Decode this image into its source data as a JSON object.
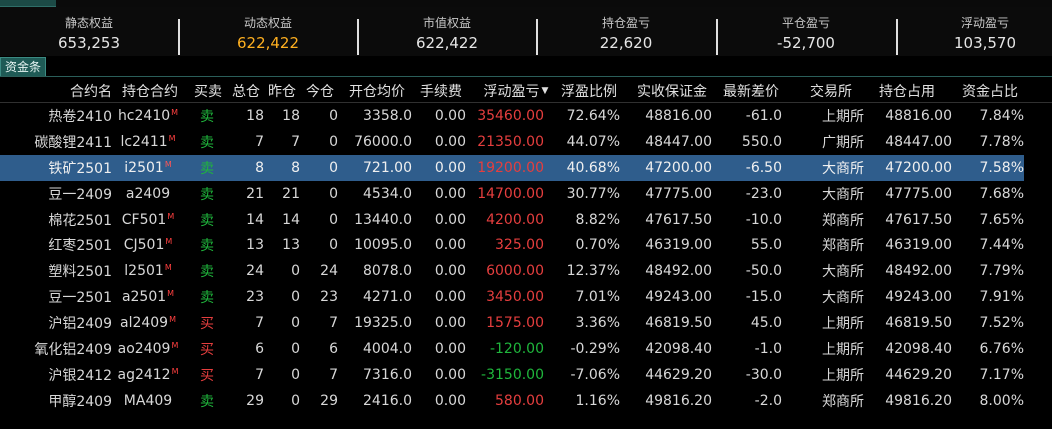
{
  "summary": [
    {
      "label": "静态权益",
      "value": "653,253",
      "accent": false
    },
    {
      "label": "动态权益",
      "value": "622,422",
      "accent": true
    },
    {
      "label": "市值权益",
      "value": "622,422",
      "accent": false
    },
    {
      "label": "持仓盈亏",
      "value": "22,620",
      "accent": false
    },
    {
      "label": "平仓盈亏",
      "value": "-52,700",
      "accent": false
    },
    {
      "label": "浮动盈亏",
      "value": "103,570",
      "accent": false
    }
  ],
  "fund_tab": "资金条",
  "headers": [
    "合约名",
    "持仓合约",
    "买卖",
    "总仓",
    "昨仓",
    "今仓",
    "开仓均价",
    "手续费",
    "浮动盈亏",
    "浮盈比例",
    "实收保证金",
    "最新差价",
    "交易所",
    "持仓占用",
    "资金占比"
  ],
  "sort_arrow": "▼",
  "colors": {
    "accent": "#ffb020",
    "profit": "#e53e3e",
    "loss": "#1fb63c",
    "selected": "#2f5d8c"
  },
  "rows": [
    {
      "name": "热卷2410",
      "code": "hc2410",
      "flag": "M",
      "side": "卖",
      "side_type": "sell",
      "total": "18",
      "yest": "18",
      "today": "0",
      "avg": "3358.0",
      "fee": "0.00",
      "pnl": "35460.00",
      "pnl_type": "red",
      "ratio": "72.64%",
      "margin": "48816.00",
      "diff": "-61.0",
      "exch": "上期所",
      "occupy": "48816.00",
      "share": "7.84%",
      "selected": false
    },
    {
      "name": "碳酸锂2411",
      "code": "lc2411",
      "flag": "M",
      "side": "卖",
      "side_type": "sell",
      "total": "7",
      "yest": "7",
      "today": "0",
      "avg": "76000.0",
      "fee": "0.00",
      "pnl": "21350.00",
      "pnl_type": "red",
      "ratio": "44.07%",
      "margin": "48447.00",
      "diff": "550.0",
      "exch": "广期所",
      "occupy": "48447.00",
      "share": "7.78%",
      "selected": false
    },
    {
      "name": "铁矿2501",
      "code": "i2501",
      "flag": "M",
      "side": "卖",
      "side_type": "sell",
      "total": "8",
      "yest": "8",
      "today": "0",
      "avg": "721.00",
      "fee": "0.00",
      "pnl": "19200.00",
      "pnl_type": "red",
      "ratio": "40.68%",
      "margin": "47200.00",
      "diff": "-6.50",
      "exch": "大商所",
      "occupy": "47200.00",
      "share": "7.58%",
      "selected": true
    },
    {
      "name": "豆一2409",
      "code": "a2409",
      "flag": "",
      "side": "卖",
      "side_type": "sell",
      "total": "21",
      "yest": "21",
      "today": "0",
      "avg": "4534.0",
      "fee": "0.00",
      "pnl": "14700.00",
      "pnl_type": "red",
      "ratio": "30.77%",
      "margin": "47775.00",
      "diff": "-23.0",
      "exch": "大商所",
      "occupy": "47775.00",
      "share": "7.68%",
      "selected": false
    },
    {
      "name": "棉花2501",
      "code": "CF501",
      "flag": "M",
      "side": "卖",
      "side_type": "sell",
      "total": "14",
      "yest": "14",
      "today": "0",
      "avg": "13440.0",
      "fee": "0.00",
      "pnl": "4200.00",
      "pnl_type": "red",
      "ratio": "8.82%",
      "margin": "47617.50",
      "diff": "-10.0",
      "exch": "郑商所",
      "occupy": "47617.50",
      "share": "7.65%",
      "selected": false
    },
    {
      "name": "红枣2501",
      "code": "CJ501",
      "flag": "M",
      "side": "卖",
      "side_type": "sell",
      "total": "13",
      "yest": "13",
      "today": "0",
      "avg": "10095.0",
      "fee": "0.00",
      "pnl": "325.00",
      "pnl_type": "red",
      "ratio": "0.70%",
      "margin": "46319.00",
      "diff": "55.0",
      "exch": "郑商所",
      "occupy": "46319.00",
      "share": "7.44%",
      "selected": false
    },
    {
      "name": "塑料2501",
      "code": "l2501",
      "flag": "M",
      "side": "卖",
      "side_type": "sell",
      "total": "24",
      "yest": "0",
      "today": "24",
      "avg": "8078.0",
      "fee": "0.00",
      "pnl": "6000.00",
      "pnl_type": "red",
      "ratio": "12.37%",
      "margin": "48492.00",
      "diff": "-50.0",
      "exch": "大商所",
      "occupy": "48492.00",
      "share": "7.79%",
      "selected": false
    },
    {
      "name": "豆一2501",
      "code": "a2501",
      "flag": "M",
      "side": "卖",
      "side_type": "sell",
      "total": "23",
      "yest": "0",
      "today": "23",
      "avg": "4271.0",
      "fee": "0.00",
      "pnl": "3450.00",
      "pnl_type": "red",
      "ratio": "7.01%",
      "margin": "49243.00",
      "diff": "-15.0",
      "exch": "大商所",
      "occupy": "49243.00",
      "share": "7.91%",
      "selected": false
    },
    {
      "name": "沪铝2409",
      "code": "al2409",
      "flag": "M",
      "side": "买",
      "side_type": "buy",
      "total": "7",
      "yest": "0",
      "today": "7",
      "avg": "19325.0",
      "fee": "0.00",
      "pnl": "1575.00",
      "pnl_type": "red",
      "ratio": "3.36%",
      "margin": "46819.50",
      "diff": "45.0",
      "exch": "上期所",
      "occupy": "46819.50",
      "share": "7.52%",
      "selected": false
    },
    {
      "name": "氧化铝2409",
      "code": "ao2409",
      "flag": "M",
      "side": "买",
      "side_type": "buy",
      "total": "6",
      "yest": "0",
      "today": "6",
      "avg": "4004.0",
      "fee": "0.00",
      "pnl": "-120.00",
      "pnl_type": "green",
      "ratio": "-0.29%",
      "margin": "42098.40",
      "diff": "-1.0",
      "exch": "上期所",
      "occupy": "42098.40",
      "share": "6.76%",
      "selected": false
    },
    {
      "name": "沪银2412",
      "code": "ag2412",
      "flag": "M",
      "side": "买",
      "side_type": "buy",
      "total": "7",
      "yest": "0",
      "today": "7",
      "avg": "7316.0",
      "fee": "0.00",
      "pnl": "-3150.00",
      "pnl_type": "green",
      "ratio": "-7.06%",
      "margin": "44629.20",
      "diff": "-30.0",
      "exch": "上期所",
      "occupy": "44629.20",
      "share": "7.17%",
      "selected": false
    },
    {
      "name": "甲醇2409",
      "code": "MA409",
      "flag": "",
      "side": "卖",
      "side_type": "sell",
      "total": "29",
      "yest": "0",
      "today": "29",
      "avg": "2416.0",
      "fee": "0.00",
      "pnl": "580.00",
      "pnl_type": "red",
      "ratio": "1.16%",
      "margin": "49816.20",
      "diff": "-2.0",
      "exch": "郑商所",
      "occupy": "49816.20",
      "share": "8.00%",
      "selected": false
    }
  ]
}
